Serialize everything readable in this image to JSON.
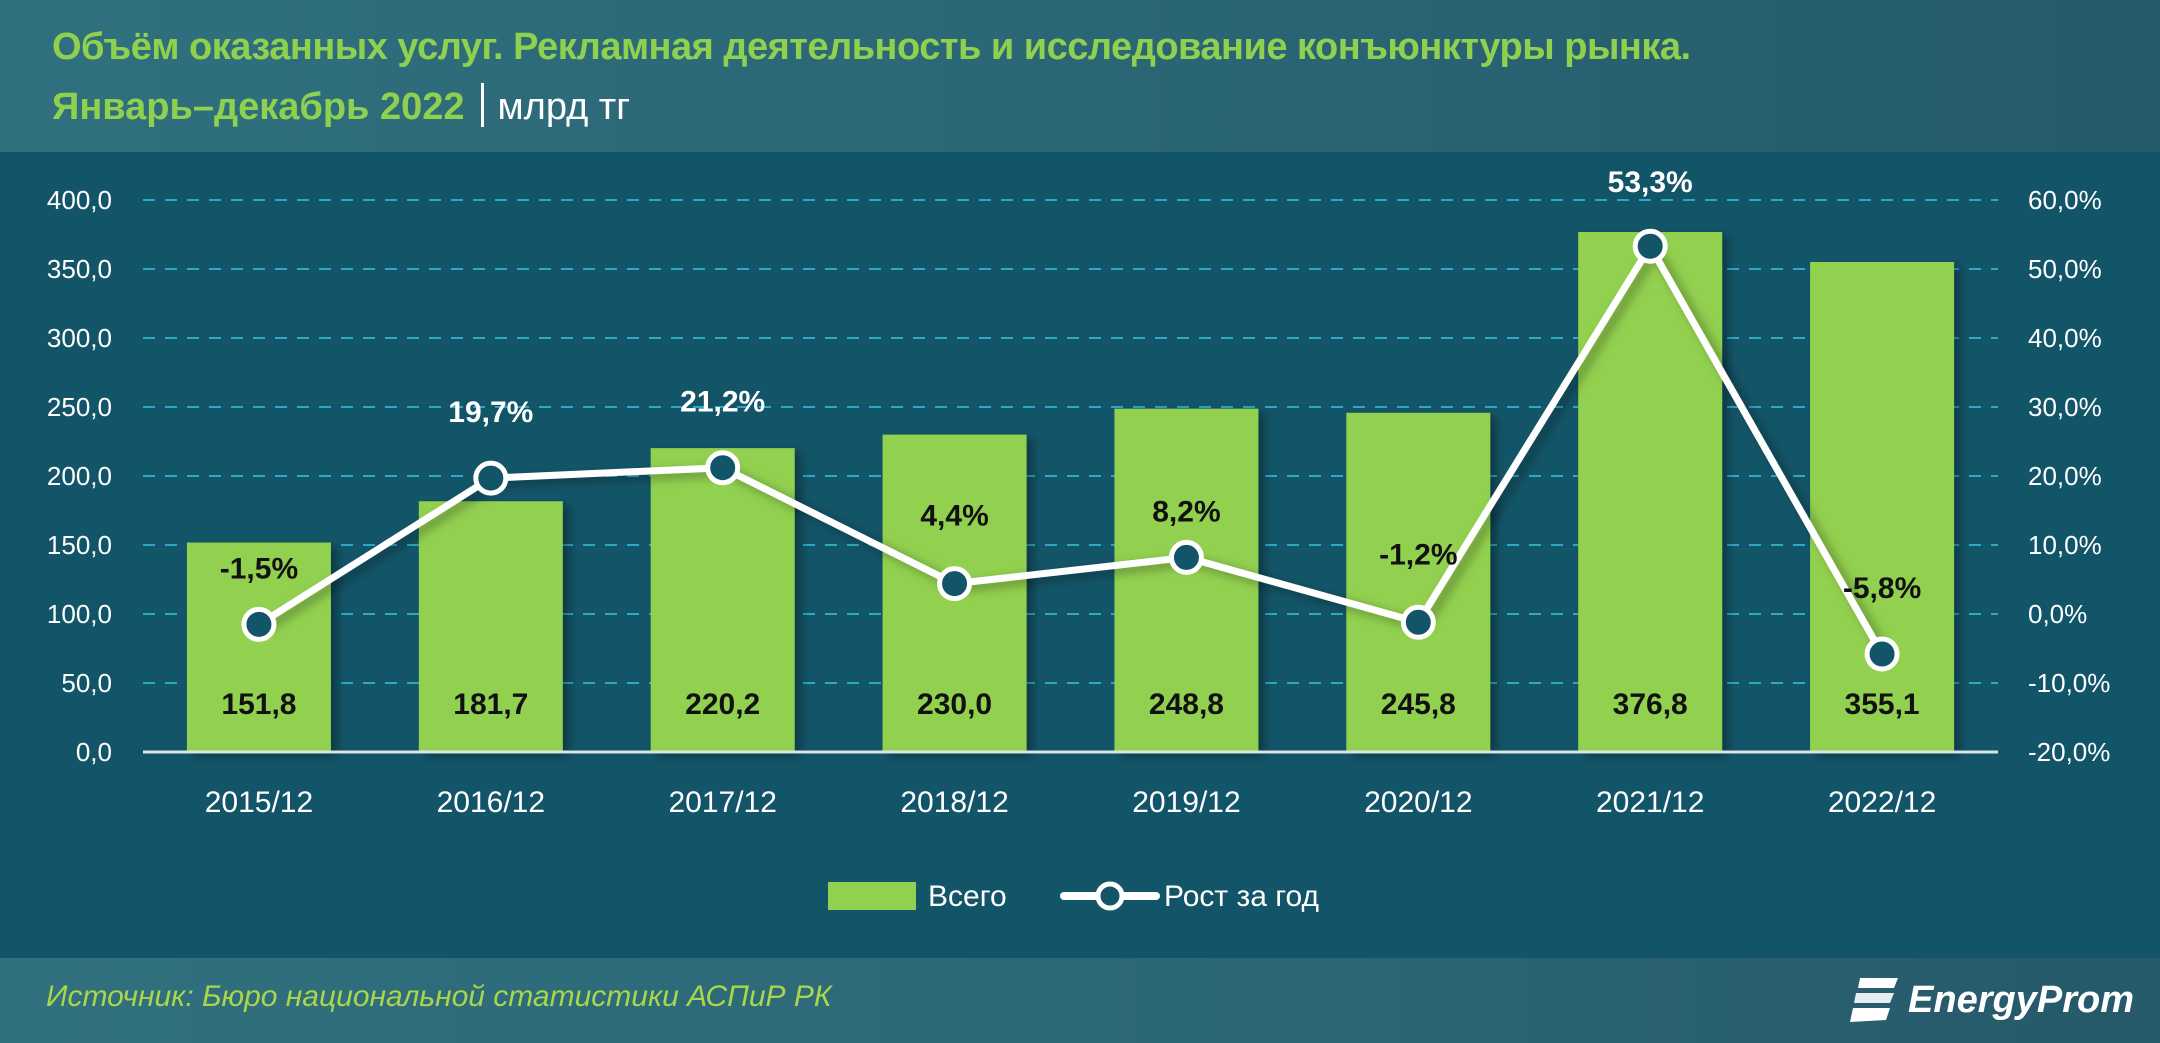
{
  "header": {
    "title_line1": "Объём оказанных услуг. Рекламная деятельность и исследование конъюнктуры рынка.",
    "title_line2": "Январь–декабрь 2022",
    "unit": "млрд тг"
  },
  "legend": {
    "bar_label": "Всего",
    "line_label": "Рост за год"
  },
  "footer": {
    "source": "Источник: Бюро национальной статистики АСПиР РК",
    "brand": "EnergyProm"
  },
  "colors": {
    "bar": "#92d050",
    "line": "#ffffff",
    "background": "#135568",
    "header_bg": "#2e6a78",
    "title": "#8fd14f",
    "grid": "#2fa7c4"
  },
  "chart_data": {
    "type": "bar+line",
    "title": "Объём оказанных услуг. Рекламная деятельность и исследование конъюнктуры рынка. Январь–декабрь 2022 | млрд тг",
    "categories": [
      "2015/12",
      "2016/12",
      "2017/12",
      "2018/12",
      "2019/12",
      "2020/12",
      "2021/12",
      "2022/12"
    ],
    "series": [
      {
        "name": "Всего",
        "type": "bar",
        "axis": "left",
        "values": [
          151.8,
          181.7,
          220.2,
          230.0,
          248.8,
          245.8,
          376.8,
          355.1
        ],
        "labels": [
          "151,8",
          "181,7",
          "220,2",
          "230,0",
          "248,8",
          "245,8",
          "376,8",
          "355,1"
        ]
      },
      {
        "name": "Рост за год",
        "type": "line",
        "axis": "right",
        "values": [
          -1.5,
          19.7,
          21.2,
          4.4,
          8.2,
          -1.2,
          53.3,
          -5.8
        ],
        "labels": [
          "-1,5%",
          "19,7%",
          "21,2%",
          "4,4%",
          "8,2%",
          "-1,2%",
          "53,3%",
          "-5,8%"
        ]
      }
    ],
    "left_axis": {
      "range": [
        0,
        400
      ],
      "ticks": [
        "0,0",
        "50,0",
        "100,0",
        "150,0",
        "200,0",
        "250,0",
        "300,0",
        "350,0",
        "400,0"
      ]
    },
    "right_axis": {
      "range": [
        -20,
        60
      ],
      "ticks": [
        "-20,0%",
        "-10,0%",
        "0,0%",
        "10,0%",
        "20,0%",
        "30,0%",
        "40,0%",
        "50,0%",
        "60,0%"
      ]
    },
    "grid": "dashed horizontal",
    "legend_position": "bottom"
  }
}
